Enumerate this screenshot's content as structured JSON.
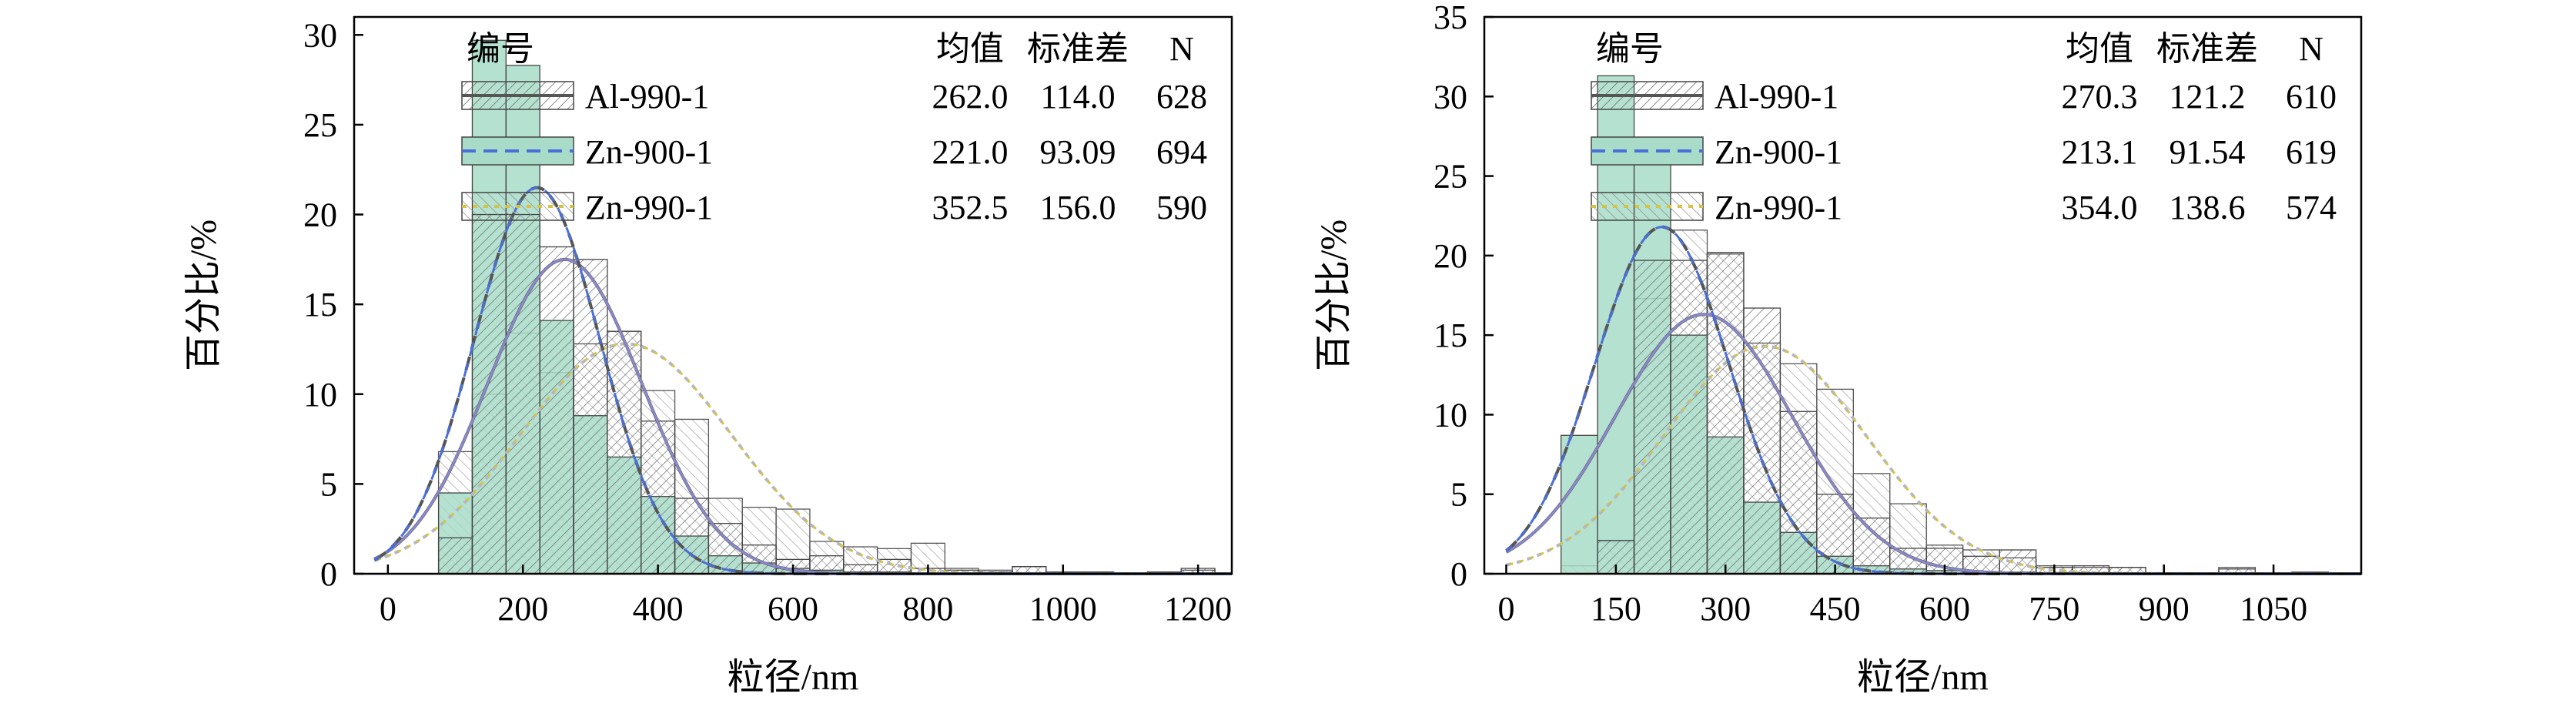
{
  "colors": {
    "al": "#555555",
    "zn900_fill": "#a8dcc9",
    "zn900_curve": "#4a6fd6",
    "zn900_curve2": "#8a88cc",
    "zn990": "#b8b8b8",
    "zn990_curve": "#d6c440"
  },
  "legend_headers": [
    "编号",
    "均值",
    "标准差",
    "N"
  ],
  "chart_data": [
    {
      "type": "histogram",
      "xlabel": "粒径/nm",
      "ylabel": "百分比/%",
      "xlim": [
        -50,
        1250
      ],
      "ylim": [
        0,
        31
      ],
      "xticks": [
        "0",
        "200",
        "400",
        "600",
        "800",
        "1000",
        "1200"
      ],
      "xtick_values": [
        0,
        200,
        400,
        600,
        800,
        1000,
        1200
      ],
      "yticks": [
        "0",
        "5",
        "10",
        "15",
        "20",
        "25",
        "30"
      ],
      "ytick_values": [
        0,
        5,
        10,
        15,
        20,
        25,
        30
      ],
      "bin_start": 75,
      "bin_width": 50,
      "grid": false,
      "legend_position": "top-right",
      "series": [
        {
          "name": "Al-990-1",
          "mean": "262.0",
          "std": "114.0",
          "n": "628",
          "mean_value": 262.0,
          "std_value": 114.0,
          "peak": 17.5,
          "values": [
            2,
            20,
            20,
            18.2,
            17.5,
            13.5,
            8.5,
            4.2,
            2.8,
            1.6,
            0.8,
            1.0,
            0.5,
            0.8,
            0.3,
            0.2,
            0.1,
            0.4,
            0.1,
            0.1,
            0,
            0.1,
            0.3
          ]
        },
        {
          "name": "Zn-900-1",
          "mean": "221.0",
          "std": "93.09",
          "n": "694",
          "mean_value": 221.0,
          "std_value": 93.09,
          "peak": 21.5,
          "values": [
            4.5,
            29.7,
            28.3,
            14.1,
            8.8,
            6.5,
            4.3,
            2.1,
            1.0,
            0.6,
            0.3,
            0.2,
            0.1,
            0.1,
            0,
            0,
            0,
            0,
            0,
            0,
            0,
            0,
            0
          ]
        },
        {
          "name": "Zn-990-1",
          "mean": "352.5",
          "std": "156.0",
          "n": "590",
          "mean_value": 352.5,
          "std_value": 156.0,
          "peak": 12.8,
          "values": [
            6.8,
            10,
            13.4,
            11.2,
            12.8,
            13.5,
            10.2,
            8.6,
            4.2,
            3.7,
            3.6,
            1.8,
            1.5,
            1.4,
            1.7,
            0.3,
            0.2,
            0.4,
            0.1,
            0.1,
            0,
            0,
            0.2
          ]
        }
      ]
    },
    {
      "type": "histogram",
      "xlabel": "粒径/nm",
      "ylabel": "百分比/%",
      "xlim": [
        -30,
        1170
      ],
      "ylim": [
        0,
        35
      ],
      "xticks": [
        "0",
        "150",
        "300",
        "450",
        "600",
        "750",
        "900",
        "1050"
      ],
      "xtick_values": [
        0,
        150,
        300,
        450,
        600,
        750,
        900,
        1050
      ],
      "yticks": [
        "0",
        "5",
        "10",
        "15",
        "20",
        "25",
        "30",
        "35"
      ],
      "ytick_values": [
        0,
        5,
        10,
        15,
        20,
        25,
        30,
        35
      ],
      "bin_start": 75,
      "bin_width": 50,
      "grid": false,
      "legend_position": "top-right",
      "series": [
        {
          "name": "Al-990-1",
          "mean": "270.3",
          "std": "121.2",
          "n": "610",
          "mean_value": 270.3,
          "std_value": 121.2,
          "peak": 16.3,
          "values": [
            0,
            2.1,
            19.7,
            19.7,
            20.2,
            16.7,
            10.2,
            5.0,
            3.5,
            1.6,
            1.6,
            1.1,
            1.5,
            0.4,
            0.5,
            0.4,
            0,
            0,
            0.3,
            0,
            0.1
          ]
        },
        {
          "name": "Zn-900-1",
          "mean": "213.1",
          "std": "91.54",
          "n": "619",
          "mean_value": 213.1,
          "std_value": 91.54,
          "peak": 21.8,
          "values": [
            8.7,
            31.3,
            27.1,
            15.0,
            8.6,
            4.5,
            2.6,
            1.1,
            0.5,
            0.3,
            0.2,
            0.1,
            0.1,
            0,
            0,
            0,
            0,
            0,
            0,
            0,
            0
          ]
        },
        {
          "name": "Zn-990-1",
          "mean": "354.0",
          "std": "138.6",
          "n": "574",
          "mean_value": 354.0,
          "std_value": 138.6,
          "peak": 14.3,
          "values": [
            0.5,
            2.0,
            17.3,
            21.6,
            20.1,
            14.5,
            13.2,
            11.6,
            6.3,
            4.4,
            1.8,
            1.5,
            1.0,
            0.5,
            0.4,
            0.4,
            0,
            0,
            0.4,
            0,
            0.1
          ]
        }
      ]
    }
  ]
}
